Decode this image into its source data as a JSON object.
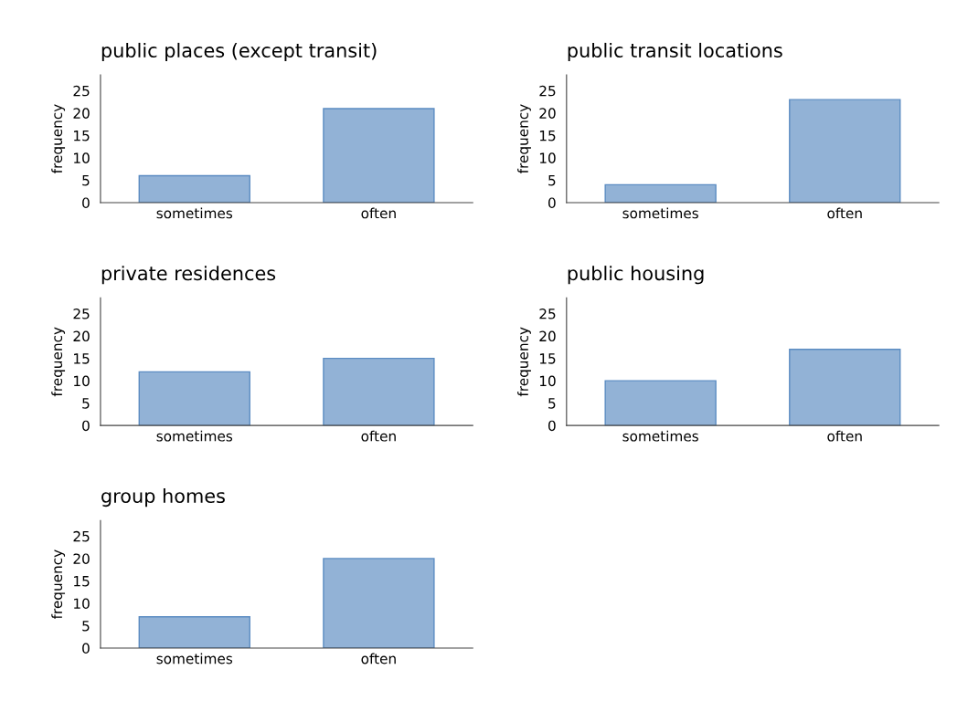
{
  "chart_data": [
    {
      "type": "bar",
      "title": "public places (except transit)",
      "ylabel": "frequency",
      "categories": [
        "sometimes",
        "often"
      ],
      "values": [
        6,
        21
      ],
      "color": "#92b2d6",
      "ylim": [
        0,
        28.5
      ],
      "yticks": [
        0,
        5,
        10,
        15,
        20,
        25
      ],
      "grid": false
    },
    {
      "type": "bar",
      "title": "public transit locations",
      "ylabel": "frequency",
      "categories": [
        "sometimes",
        "often"
      ],
      "values": [
        4,
        23
      ],
      "color": "#92b2d6",
      "ylim": [
        0,
        28.5
      ],
      "yticks": [
        0,
        5,
        10,
        15,
        20,
        25
      ],
      "grid": false
    },
    {
      "type": "bar",
      "title": "private residences",
      "ylabel": "frequency",
      "categories": [
        "sometimes",
        "often"
      ],
      "values": [
        12,
        15
      ],
      "color": "#92b2d6",
      "ylim": [
        0,
        28.5
      ],
      "yticks": [
        0,
        5,
        10,
        15,
        20,
        25
      ],
      "grid": false
    },
    {
      "type": "bar",
      "title": "public housing",
      "ylabel": "frequency",
      "categories": [
        "sometimes",
        "often"
      ],
      "values": [
        10,
        17
      ],
      "color": "#92b2d6",
      "ylim": [
        0,
        28.5
      ],
      "yticks": [
        0,
        5,
        10,
        15,
        20,
        25
      ],
      "grid": false
    },
    {
      "type": "bar",
      "title": "group homes",
      "ylabel": "frequency",
      "categories": [
        "sometimes",
        "often"
      ],
      "values": [
        7,
        20
      ],
      "color": "#92b2d6",
      "ylim": [
        0,
        28.5
      ],
      "yticks": [
        0,
        5,
        10,
        15,
        20,
        25
      ],
      "grid": false
    }
  ]
}
